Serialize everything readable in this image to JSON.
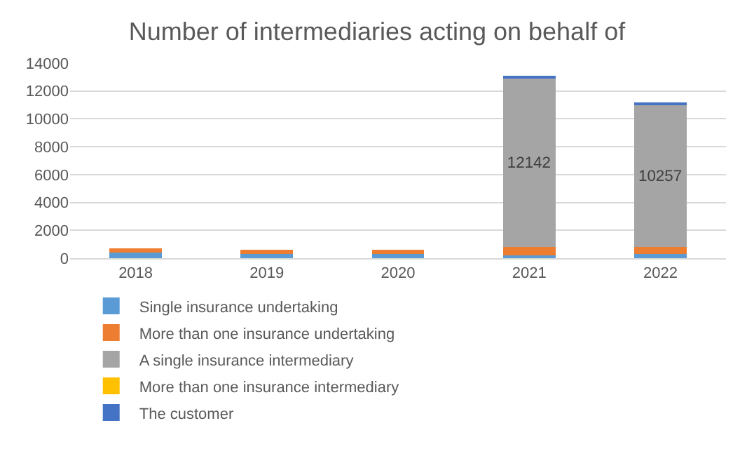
{
  "chart_data": {
    "type": "bar",
    "title": "Number of intermediaries acting on behalf of",
    "categories": [
      "2018",
      "2019",
      "2020",
      "2021",
      "2022"
    ],
    "stacked": true,
    "ylim": [
      0,
      14000
    ],
    "yticks": [
      0,
      2000,
      4000,
      6000,
      8000,
      10000,
      12000,
      14000
    ],
    "grid": "y",
    "legend": "bottom",
    "series": [
      {
        "name": "Single insurance undertaking",
        "color": "#5b9bd5",
        "values": [
          400,
          400,
          300,
          200,
          300
        ]
      },
      {
        "name": "More than one insurance undertaking",
        "color": "#ed7d31",
        "values": [
          300,
          200,
          300,
          600,
          500
        ]
      },
      {
        "name": "A single insurance intermediary",
        "color": "#a5a5a5",
        "values": [
          0,
          0,
          0,
          12142,
          10257
        ],
        "value_labels": [
          null,
          null,
          null,
          "12142",
          "10257"
        ]
      },
      {
        "name": "More than one insurance intermediary",
        "color": "#ffc000",
        "values": [
          0,
          0,
          0,
          0,
          0
        ]
      },
      {
        "name": "The customer",
        "color": "#4472c4",
        "values": [
          0,
          0,
          0,
          100,
          100
        ]
      }
    ]
  }
}
